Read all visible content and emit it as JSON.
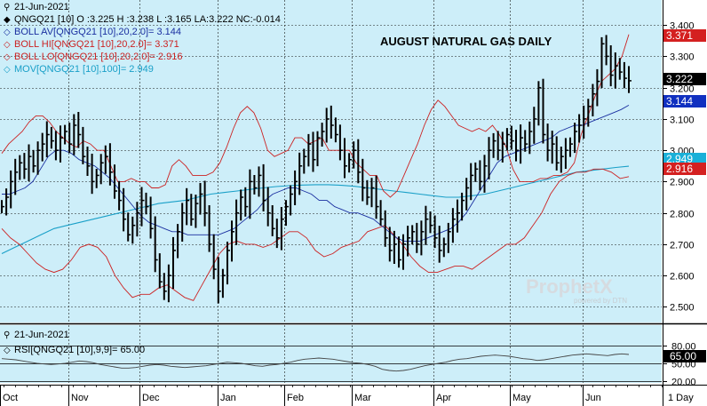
{
  "header": {
    "date": "21-Jun-2021",
    "title": "AUGUST NATURAL GAS DAILY",
    "watermark": "ProphetX",
    "watermark_sub": "powered by DTN"
  },
  "legend": [
    {
      "symbol": "◆",
      "text": "QNGQ21 [10] O :3.225 H :3.238 L :3.165 LA:3.222 NC:-0.014",
      "color": "#000000"
    },
    {
      "symbol": "◇",
      "text": "BOLL AV[QNGQ21 [10],20,2.0]= 3.144",
      "color": "#1a2fa0"
    },
    {
      "symbol": "◇",
      "text": "BOLL HI[QNGQ21 [10],20,2.0]= 3.371",
      "color": "#cc2222"
    },
    {
      "symbol": "◇",
      "text": "BOLL LO[QNGQ21 [10],20,2.0]= 2.916",
      "color": "#cc2222"
    },
    {
      "symbol": "◇",
      "text": "MOV[QNGQ21 [10],100]= 2.949",
      "color": "#1aa0c8"
    }
  ],
  "rsi_panel": {
    "date": "21-Jun-2021",
    "label": "RSI[QNGQ21 [10],9,9]= 65.00",
    "symbol": "◇",
    "ticks": [
      "80.00",
      "50.00",
      "20.00"
    ],
    "value_label": "65.00"
  },
  "x_axis": {
    "months": [
      "Oct",
      "Nov",
      "Dec",
      "Jan",
      "Feb",
      "Mar",
      "Apr",
      "May",
      "Jun"
    ],
    "period_label": "1 Day"
  },
  "colors": {
    "background": "#cdeef9",
    "grid": "#1a1a1a",
    "bollinger_band": "#cc2222",
    "bollinger_avg": "#1a2fa0",
    "moving_avg": "#1aa0c8",
    "price": "#000000"
  },
  "chart_data": {
    "type": "line",
    "title": "AUGUST NATURAL GAS DAILY",
    "y_ticks": [
      "3.400",
      "3.300",
      "3.200",
      "3.100",
      "3.000",
      "2.900",
      "2.800",
      "2.700",
      "2.600",
      "2.500"
    ],
    "ylim": [
      2.45,
      3.48
    ],
    "price_labels": [
      {
        "name": "BOLL HI",
        "value": "3.371",
        "color": "#cc2222"
      },
      {
        "name": "LAST",
        "value": "3.222",
        "color": "#000000"
      },
      {
        "name": "BOLL AV",
        "value": "3.144",
        "color": "#1a2fa0"
      },
      {
        "name": "MOV",
        "value": "2.949",
        "color": "#1aa0c8"
      },
      {
        "name": "BOLL LO",
        "value": "2.916",
        "color": "#cc2222"
      }
    ],
    "price_closes": [
      2.82,
      2.85,
      2.9,
      2.93,
      2.96,
      2.94,
      2.98,
      2.95,
      3.0,
      3.02,
      3.05,
      3.03,
      3.0,
      3.04,
      3.06,
      3.02,
      3.08,
      3.05,
      2.98,
      2.95,
      2.9,
      2.92,
      2.96,
      2.98,
      2.93,
      2.87,
      2.84,
      2.78,
      2.73,
      2.76,
      2.8,
      2.84,
      2.82,
      2.75,
      2.65,
      2.58,
      2.55,
      2.6,
      2.68,
      2.74,
      2.8,
      2.84,
      2.78,
      2.83,
      2.86,
      2.8,
      2.7,
      2.62,
      2.55,
      2.6,
      2.68,
      2.74,
      2.8,
      2.85,
      2.82,
      2.9,
      2.88,
      2.92,
      2.84,
      2.8,
      2.75,
      2.72,
      2.78,
      2.82,
      2.86,
      2.9,
      2.95,
      2.98,
      3.02,
      2.97,
      3.04,
      3.06,
      3.1,
      3.08,
      3.05,
      3.0,
      2.95,
      2.97,
      3.0,
      2.93,
      2.88,
      2.85,
      2.88,
      2.82,
      2.78,
      2.72,
      2.68,
      2.7,
      2.65,
      2.7,
      2.72,
      2.74,
      2.7,
      2.74,
      2.78,
      2.76,
      2.72,
      2.68,
      2.7,
      2.74,
      2.78,
      2.8,
      2.84,
      2.88,
      2.92,
      2.94,
      2.9,
      2.95,
      3.0,
      3.03,
      3.0,
      3.02,
      3.05,
      3.03,
      3.0,
      3.04,
      3.02,
      3.06,
      3.1,
      3.2,
      3.05,
      3.0,
      3.02,
      2.96,
      2.98,
      3.0,
      3.02,
      3.06,
      3.08,
      3.1,
      3.14,
      3.18,
      3.22,
      3.34,
      3.3,
      3.24,
      3.27,
      3.25,
      3.23,
      3.222
    ],
    "boll_hi": [
      2.99,
      3.02,
      3.04,
      3.06,
      3.09,
      3.11,
      3.11,
      3.09,
      3.06,
      3.04,
      3.02,
      3.01,
      3.03,
      3.02,
      3.0,
      3.0,
      2.95,
      2.9,
      2.9,
      2.91,
      2.9,
      2.9,
      2.88,
      2.88,
      2.89,
      2.95,
      2.97,
      2.95,
      2.92,
      2.92,
      2.92,
      2.93,
      2.96,
      3.01,
      3.07,
      3.12,
      3.14,
      3.12,
      3.07,
      3.0,
      2.98,
      2.99,
      3.0,
      3.04,
      3.04,
      3.02,
      3.03,
      3.04,
      3.0,
      3.0,
      3.0,
      3.0,
      2.96,
      2.94,
      2.92,
      2.92,
      2.87,
      2.85,
      2.87,
      2.92,
      2.97,
      3.02,
      3.08,
      3.13,
      3.16,
      3.14,
      3.11,
      3.08,
      3.07,
      3.06,
      3.07,
      3.06,
      3.08,
      3.05,
      3.01,
      2.94,
      2.9,
      2.9,
      2.9,
      2.91,
      2.91,
      2.92,
      2.92,
      2.93,
      2.96,
      3.05,
      3.11,
      3.17,
      3.22,
      3.24,
      3.26,
      3.3,
      3.37
    ],
    "boll_avg": [
      2.86,
      2.86,
      2.87,
      2.88,
      2.9,
      2.94,
      2.98,
      3.0,
      3.0,
      2.99,
      2.97,
      2.96,
      2.95,
      2.93,
      2.91,
      2.88,
      2.85,
      2.82,
      2.79,
      2.77,
      2.76,
      2.75,
      2.74,
      2.74,
      2.73,
      2.73,
      2.73,
      2.73,
      2.73,
      2.74,
      2.75,
      2.77,
      2.79,
      2.81,
      2.84,
      2.86,
      2.87,
      2.88,
      2.88,
      2.87,
      2.86,
      2.84,
      2.84,
      2.82,
      2.81,
      2.8,
      2.8,
      2.79,
      2.78,
      2.76,
      2.74,
      2.72,
      2.71,
      2.71,
      2.71,
      2.72,
      2.73,
      2.74,
      2.75,
      2.77,
      2.8,
      2.84,
      2.88,
      2.92,
      2.96,
      2.98,
      2.99,
      3.0,
      3.01,
      3.02,
      3.03,
      3.04,
      3.06,
      3.07,
      3.08,
      3.08,
      3.09,
      3.1,
      3.11,
      3.12,
      3.13,
      3.144
    ],
    "mov": [
      2.67,
      2.69,
      2.71,
      2.73,
      2.75,
      2.76,
      2.77,
      2.78,
      2.79,
      2.8,
      2.81,
      2.82,
      2.83,
      2.835,
      2.84,
      2.85,
      2.86,
      2.865,
      2.87,
      2.875,
      2.88,
      2.884,
      2.887,
      2.889,
      2.89,
      2.89,
      2.888,
      2.885,
      2.88,
      2.875,
      2.87,
      2.865,
      2.86,
      2.855,
      2.85,
      2.85,
      2.855,
      2.86,
      2.87,
      2.88,
      2.89,
      2.9,
      2.91,
      2.92,
      2.93,
      2.935,
      2.94,
      2.945,
      2.949
    ],
    "boll_lo": [
      2.75,
      2.72,
      2.7,
      2.67,
      2.64,
      2.62,
      2.61,
      2.62,
      2.65,
      2.69,
      2.7,
      2.69,
      2.66,
      2.6,
      2.56,
      2.53,
      2.54,
      2.54,
      2.56,
      2.57,
      2.55,
      2.53,
      2.52,
      2.57,
      2.62,
      2.67,
      2.7,
      2.71,
      2.7,
      2.7,
      2.69,
      2.7,
      2.72,
      2.74,
      2.74,
      2.72,
      2.68,
      2.66,
      2.67,
      2.69,
      2.7,
      2.71,
      2.74,
      2.75,
      2.76,
      2.73,
      2.7,
      2.66,
      2.63,
      2.61,
      2.61,
      2.62,
      2.63,
      2.63,
      2.62,
      2.64,
      2.66,
      2.68,
      2.7,
      2.7,
      2.72,
      2.76,
      2.8,
      2.86,
      2.9,
      2.92,
      2.93,
      2.93,
      2.94,
      2.94,
      2.93,
      2.91,
      2.916
    ],
    "rsi": [
      58,
      57,
      56,
      54,
      52,
      50,
      49,
      48,
      49,
      50,
      52,
      54,
      53,
      51,
      48,
      46,
      44,
      42,
      42,
      43,
      45,
      47,
      48,
      47,
      45,
      44,
      43,
      44,
      45,
      46,
      48,
      50,
      52,
      51,
      50,
      48,
      46,
      45,
      47,
      48,
      50,
      52,
      55,
      57,
      58,
      59,
      58,
      57,
      55,
      53,
      51,
      50,
      48,
      45,
      40,
      38,
      37,
      38,
      40,
      43,
      46,
      48,
      50,
      52,
      55,
      57,
      58,
      60,
      62,
      63,
      64,
      63,
      62,
      60,
      58,
      57,
      55,
      56,
      58,
      60,
      62,
      64,
      65,
      66,
      65,
      64,
      63,
      65,
      66,
      65
    ]
  }
}
